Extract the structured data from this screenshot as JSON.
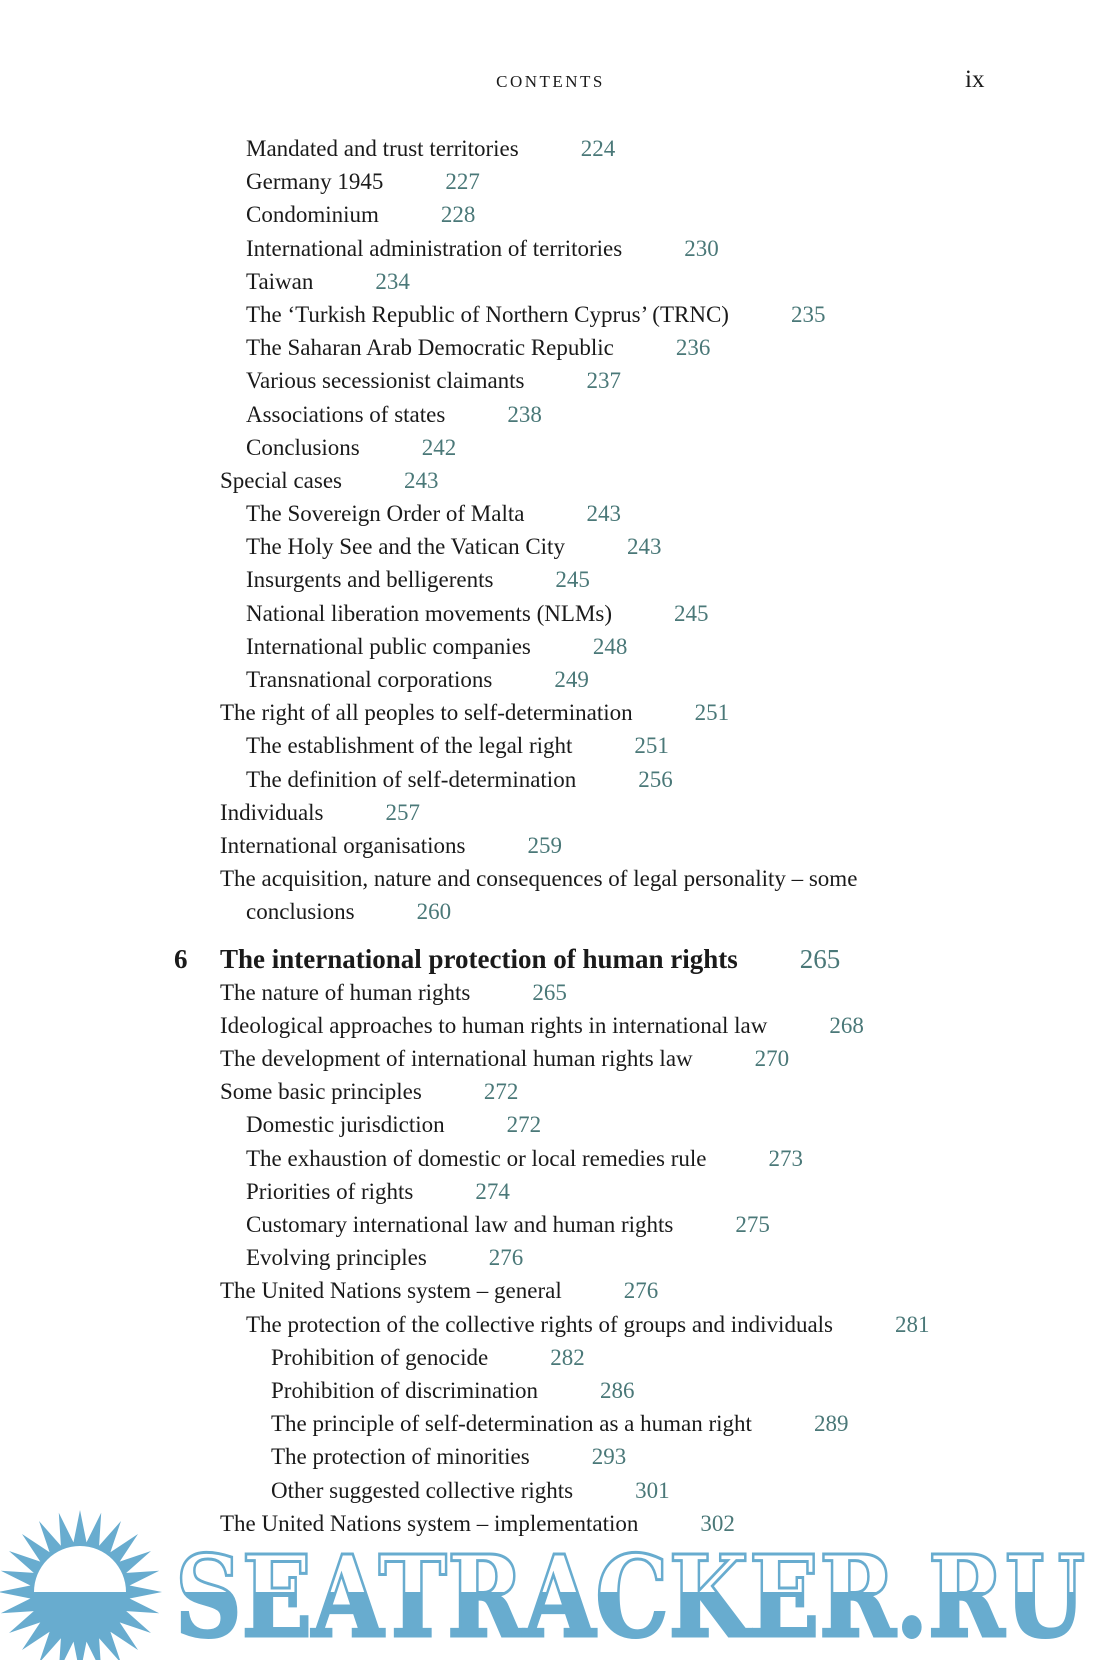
{
  "header": {
    "running_title": "CONTENTS",
    "page_number": "ix"
  },
  "colors": {
    "page_number": "#4a7878",
    "watermark": "#68accf"
  },
  "entries_before": [
    {
      "level": 2,
      "title": "Mandated and trust territories",
      "page": "224"
    },
    {
      "level": 2,
      "title": "Germany 1945",
      "page": "227"
    },
    {
      "level": 2,
      "title": "Condominium",
      "page": "228"
    },
    {
      "level": 2,
      "title": "International administration of territories",
      "page": "230"
    },
    {
      "level": 2,
      "title": "Taiwan",
      "page": "234"
    },
    {
      "level": 2,
      "title": "The ‘Turkish Republic of Northern Cyprus’ (TRNC)",
      "page": "235"
    },
    {
      "level": 2,
      "title": "The Saharan Arab Democratic Republic",
      "page": "236"
    },
    {
      "level": 2,
      "title": "Various secessionist claimants",
      "page": "237"
    },
    {
      "level": 2,
      "title": "Associations of states",
      "page": "238"
    },
    {
      "level": 2,
      "title": "Conclusions",
      "page": "242"
    },
    {
      "level": 1,
      "title": "Special cases",
      "page": "243"
    },
    {
      "level": 2,
      "title": "The Sovereign Order of Malta",
      "page": "243"
    },
    {
      "level": 2,
      "title": "The Holy See and the Vatican City",
      "page": "243"
    },
    {
      "level": 2,
      "title": "Insurgents and belligerents",
      "page": "245"
    },
    {
      "level": 2,
      "title": "National liberation movements (NLMs)",
      "page": "245"
    },
    {
      "level": 2,
      "title": "International public companies",
      "page": "248"
    },
    {
      "level": 2,
      "title": "Transnational corporations",
      "page": "249"
    },
    {
      "level": 1,
      "title": "The right of all peoples to self-determination",
      "page": "251"
    },
    {
      "level": 2,
      "title": "The establishment of the legal right",
      "page": "251"
    },
    {
      "level": 2,
      "title": "The definition of self-determination",
      "page": "256"
    },
    {
      "level": 1,
      "title": "Individuals",
      "page": "257"
    },
    {
      "level": 1,
      "title": "International organisations",
      "page": "259"
    }
  ],
  "wrapped_entry": {
    "title_line1": "The acquisition, nature and consequences of legal personality – some",
    "title_line2": "conclusions",
    "page": "260"
  },
  "chapter": {
    "number": "6",
    "title": "The international protection of human rights",
    "page": "265"
  },
  "entries_after": [
    {
      "level": 1,
      "title": "The nature of human rights",
      "page": "265"
    },
    {
      "level": 1,
      "title": "Ideological approaches to human rights in international law",
      "page": "268"
    },
    {
      "level": 1,
      "title": "The development of international human rights law",
      "page": "270"
    },
    {
      "level": 1,
      "title": "Some basic principles",
      "page": "272"
    },
    {
      "level": 2,
      "title": "Domestic jurisdiction",
      "page": "272"
    },
    {
      "level": 2,
      "title": "The exhaustion of domestic or local remedies rule",
      "page": "273"
    },
    {
      "level": 2,
      "title": "Priorities of rights",
      "page": "274"
    },
    {
      "level": 2,
      "title": "Customary international law and human rights",
      "page": "275"
    },
    {
      "level": 2,
      "title": "Evolving principles",
      "page": "276"
    },
    {
      "level": 1,
      "title": "The United Nations system – general",
      "page": "276"
    },
    {
      "level": 2,
      "title": "The protection of the collective rights of groups and individuals",
      "page": "281"
    },
    {
      "level": 3,
      "title": "Prohibition of genocide",
      "page": "282"
    },
    {
      "level": 3,
      "title": "Prohibition of discrimination",
      "page": "286"
    },
    {
      "level": 3,
      "title": "The principle of self-determination as a human right",
      "page": "289"
    },
    {
      "level": 3,
      "title": "The protection of minorities",
      "page": "293"
    },
    {
      "level": 3,
      "title": "Other suggested collective rights",
      "page": "301"
    },
    {
      "level": 1,
      "title": "The United Nations system – implementation",
      "page": "302"
    }
  ],
  "watermark": {
    "text": "SEATRACKER.RU",
    "icon": "sun-icon"
  }
}
